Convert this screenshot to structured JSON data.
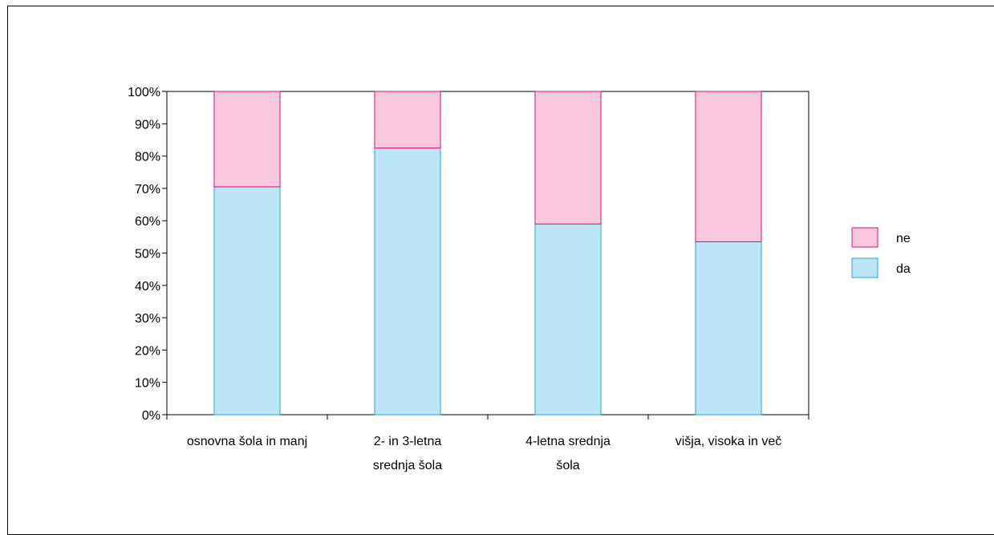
{
  "chart_data": {
    "type": "bar",
    "stacked": true,
    "percent": true,
    "categories": [
      [
        "osnovna šola in manj"
      ],
      [
        "2- in 3-letna",
        "srednja šola"
      ],
      [
        "4-letna srednja",
        "šola"
      ],
      [
        "višja, visoka in več"
      ]
    ],
    "series": [
      {
        "name": "da",
        "values": [
          70.5,
          82.5,
          59,
          53.5
        ],
        "color": "#bde5f8",
        "stroke": "#1ea9de"
      },
      {
        "name": "ne",
        "values": [
          29.5,
          17.5,
          41,
          46.5
        ],
        "color": "#f8c8dc",
        "stroke": "#d6147c"
      }
    ],
    "legend": {
      "items": [
        "ne",
        "da"
      ],
      "placement": "right"
    },
    "yticks": [
      "0%",
      "10%",
      "20%",
      "30%",
      "40%",
      "50%",
      "60%",
      "70%",
      "80%",
      "90%",
      "100%"
    ],
    "ylim": [
      0,
      100
    ],
    "grid": false
  }
}
